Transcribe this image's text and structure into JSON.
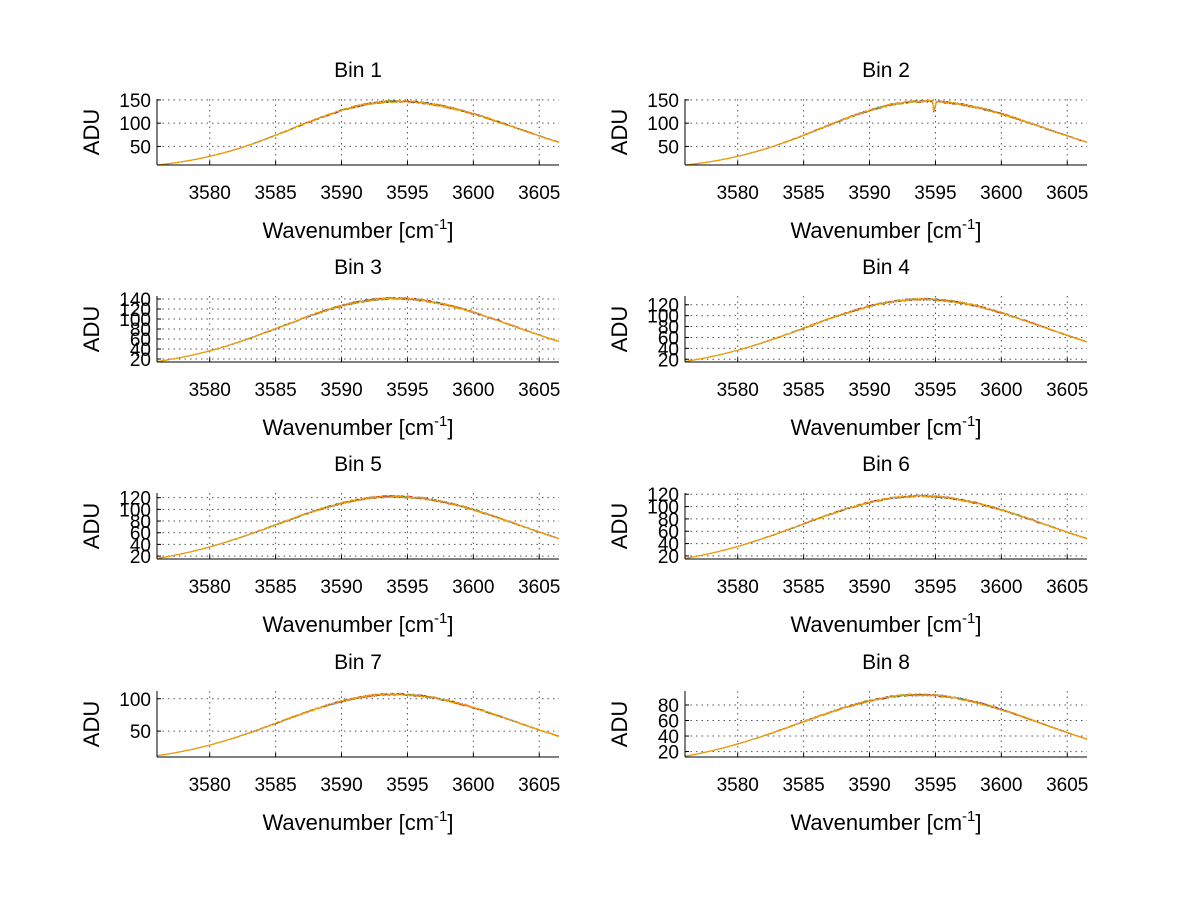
{
  "figure": {
    "background": "#ffffff"
  },
  "chart_data": [
    {
      "type": "line",
      "title": "Bin 1",
      "xlabel": "Wavenumber [cm",
      "xlabel_sup": "-1",
      "xlabel_close": "]",
      "ylabel": "ADU",
      "xlim": [
        3576,
        3606.5
      ],
      "ylim": [
        10,
        152
      ],
      "xticks": [
        3580,
        3585,
        3590,
        3595,
        3600,
        3605
      ],
      "yticks": [
        50,
        100,
        150
      ],
      "ytick_labels": [
        "50",
        "100",
        "150"
      ],
      "curve": {
        "min": 10,
        "peak": 147,
        "center": 3594.2,
        "right_end": 59
      },
      "series": [
        {
          "name": "blue",
          "color": "#1f3fb0"
        },
        {
          "name": "green",
          "color": "#2e8b3e"
        },
        {
          "name": "red",
          "color": "#d03030"
        },
        {
          "name": "orange",
          "color": "#f5a300"
        }
      ]
    },
    {
      "type": "line",
      "title": "Bin 2",
      "xlabel": "Wavenumber [cm",
      "xlabel_sup": "-1",
      "xlabel_close": "]",
      "ylabel": "ADU",
      "xlim": [
        3576,
        3606.5
      ],
      "ylim": [
        10,
        152
      ],
      "xticks": [
        3580,
        3585,
        3590,
        3595,
        3600,
        3605
      ],
      "yticks": [
        50,
        100,
        150
      ],
      "ytick_labels": [
        "50",
        "100",
        "150"
      ],
      "curve": {
        "min": 10,
        "peak": 147,
        "center": 3594.2,
        "right_end": 59,
        "dip_at": 3594.9,
        "dip_depth": 28
      },
      "series": [
        {
          "name": "blue",
          "color": "#1f3fb0"
        },
        {
          "name": "green",
          "color": "#2e8b3e"
        },
        {
          "name": "red",
          "color": "#d03030"
        },
        {
          "name": "orange",
          "color": "#f5a300"
        }
      ]
    },
    {
      "type": "line",
      "title": "Bin 3",
      "xlabel": "Wavenumber [cm",
      "xlabel_sup": "-1",
      "xlabel_close": "]",
      "ylabel": "ADU",
      "xlim": [
        3576,
        3606.5
      ],
      "ylim": [
        14,
        146
      ],
      "xticks": [
        3580,
        3585,
        3590,
        3595,
        3600,
        3605
      ],
      "yticks": [
        20,
        40,
        60,
        80,
        100,
        120,
        140
      ],
      "ytick_labels": [
        "20",
        "40",
        "60",
        "80",
        "100",
        "120",
        "140"
      ],
      "curve": {
        "min": 15,
        "peak": 141,
        "center": 3594.0,
        "right_end": 55
      },
      "series": [
        {
          "name": "blue",
          "color": "#1f3fb0"
        },
        {
          "name": "green",
          "color": "#2e8b3e"
        },
        {
          "name": "red",
          "color": "#d03030"
        },
        {
          "name": "orange",
          "color": "#f5a300"
        }
      ]
    },
    {
      "type": "line",
      "title": "Bin 4",
      "xlabel": "Wavenumber [cm",
      "xlabel_sup": "-1",
      "xlabel_close": "]",
      "ylabel": "ADU",
      "xlim": [
        3576,
        3606.5
      ],
      "ylim": [
        15,
        136
      ],
      "xticks": [
        3580,
        3585,
        3590,
        3595,
        3600,
        3605
      ],
      "yticks": [
        20,
        40,
        60,
        80,
        100,
        120
      ],
      "ytick_labels": [
        "20",
        "40",
        "60",
        "80",
        "100",
        "120"
      ],
      "curve": {
        "min": 16,
        "peak": 130,
        "center": 3594.0,
        "right_end": 52
      },
      "series": [
        {
          "name": "blue",
          "color": "#1f3fb0"
        },
        {
          "name": "green",
          "color": "#2e8b3e"
        },
        {
          "name": "red",
          "color": "#d03030"
        },
        {
          "name": "orange",
          "color": "#f5a300"
        }
      ]
    },
    {
      "type": "line",
      "title": "Bin 5",
      "xlabel": "Wavenumber [cm",
      "xlabel_sup": "-1",
      "xlabel_close": "]",
      "ylabel": "ADU",
      "xlim": [
        3576,
        3606.5
      ],
      "ylim": [
        15,
        128
      ],
      "xticks": [
        3580,
        3585,
        3590,
        3595,
        3600,
        3605
      ],
      "yticks": [
        20,
        40,
        60,
        80,
        100,
        120
      ],
      "ytick_labels": [
        "20",
        "40",
        "60",
        "80",
        "100",
        "120"
      ],
      "curve": {
        "min": 16,
        "peak": 122,
        "center": 3594.0,
        "right_end": 50
      },
      "series": [
        {
          "name": "blue",
          "color": "#1f3fb0"
        },
        {
          "name": "green",
          "color": "#2e8b3e"
        },
        {
          "name": "red",
          "color": "#d03030"
        },
        {
          "name": "orange",
          "color": "#f5a300"
        }
      ]
    },
    {
      "type": "line",
      "title": "Bin 6",
      "xlabel": "Wavenumber [cm",
      "xlabel_sup": "-1",
      "xlabel_close": "]",
      "ylabel": "ADU",
      "xlim": [
        3576,
        3606.5
      ],
      "ylim": [
        15,
        122
      ],
      "xticks": [
        3580,
        3585,
        3590,
        3595,
        3600,
        3605
      ],
      "yticks": [
        20,
        40,
        60,
        80,
        100,
        120
      ],
      "ytick_labels": [
        "20",
        "40",
        "60",
        "80",
        "100",
        "120"
      ],
      "curve": {
        "min": 16,
        "peak": 117,
        "center": 3593.8,
        "right_end": 48
      },
      "series": [
        {
          "name": "blue",
          "color": "#1f3fb0"
        },
        {
          "name": "green",
          "color": "#2e8b3e"
        },
        {
          "name": "red",
          "color": "#d03030"
        },
        {
          "name": "orange",
          "color": "#f5a300"
        }
      ]
    },
    {
      "type": "line",
      "title": "Bin 7",
      "xlabel": "Wavenumber [cm",
      "xlabel_sup": "-1",
      "xlabel_close": "]",
      "ylabel": "ADU",
      "xlim": [
        3576,
        3606.5
      ],
      "ylim": [
        10,
        112
      ],
      "xticks": [
        3580,
        3585,
        3590,
        3595,
        3600,
        3605
      ],
      "yticks": [
        50,
        100
      ],
      "ytick_labels": [
        "50",
        "100"
      ],
      "curve": {
        "min": 12,
        "peak": 107,
        "center": 3594.0,
        "right_end": 42
      },
      "series": [
        {
          "name": "blue",
          "color": "#1f3fb0"
        },
        {
          "name": "green",
          "color": "#2e8b3e"
        },
        {
          "name": "red",
          "color": "#d03030"
        },
        {
          "name": "orange",
          "color": "#f5a300"
        }
      ]
    },
    {
      "type": "line",
      "title": "Bin 8",
      "xlabel": "Wavenumber [cm",
      "xlabel_sup": "-1",
      "xlabel_close": "]",
      "ylabel": "ADU",
      "xlim": [
        3576,
        3606.5
      ],
      "ylim": [
        13,
        98
      ],
      "xticks": [
        3580,
        3585,
        3590,
        3595,
        3600,
        3605
      ],
      "yticks": [
        20,
        40,
        60,
        80
      ],
      "ytick_labels": [
        "20",
        "40",
        "60",
        "80"
      ],
      "curve": {
        "min": 14,
        "peak": 93,
        "center": 3593.8,
        "right_end": 36
      },
      "series": [
        {
          "name": "blue",
          "color": "#1f3fb0"
        },
        {
          "name": "green",
          "color": "#2e8b3e"
        },
        {
          "name": "red",
          "color": "#d03030"
        },
        {
          "name": "orange",
          "color": "#f5a300"
        }
      ]
    }
  ]
}
